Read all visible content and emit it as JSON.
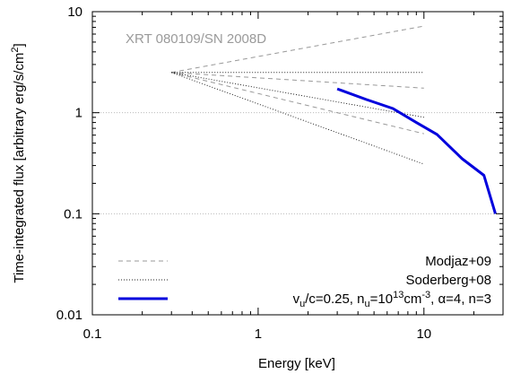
{
  "chart_data": {
    "type": "line",
    "title": "",
    "annotation": "XRT 080109/SN 2008D",
    "xlabel": "Energy [keV]",
    "ylabel_parts": {
      "main": "Time-integrated flux [arbitrary erg/s/cm",
      "sup": "2",
      "close": "]"
    },
    "x_scale": "log",
    "y_scale": "log",
    "xlim": [
      0.1,
      30
    ],
    "ylim": [
      0.01,
      10
    ],
    "x_ticks": [
      0.1,
      1,
      10
    ],
    "x_tick_labels": [
      "0.1",
      "1",
      "10"
    ],
    "y_ticks": [
      0.01,
      0.1,
      1,
      10
    ],
    "y_tick_labels": [
      "0.01",
      "0.1",
      "1",
      "10"
    ],
    "grid": "horizontal dotted at decades",
    "legend_position": "bottom-right",
    "legend": [
      {
        "key": "modjaz",
        "text": "Modjaz+09",
        "style": "dashed",
        "color": "#999999"
      },
      {
        "key": "soderberg",
        "text": "Soderberg+08",
        "style": "dotted",
        "color": "#222222"
      },
      {
        "key": "model",
        "parts": [
          {
            "t": "v",
            "s": "n"
          },
          {
            "t": "u",
            "s": "sub"
          },
          {
            "t": "/c=0.25, n",
            "s": "n"
          },
          {
            "t": "u",
            "s": "sub"
          },
          {
            "t": "=10",
            "s": "n"
          },
          {
            "t": "13",
            "s": "sup"
          },
          {
            "t": "cm",
            "s": "n"
          },
          {
            "t": "-3",
            "s": "sup"
          },
          {
            "t": ", α=4, n=3",
            "s": "n"
          }
        ],
        "style": "solid",
        "color": "#0000dd"
      }
    ],
    "series": [
      {
        "key": "modjaz",
        "style": "dashed",
        "color": "#999999",
        "x": [
          0.3,
          10
        ],
        "y": [
          2.5,
          7.2
        ]
      },
      {
        "key": "modjaz",
        "style": "dashed",
        "color": "#999999",
        "x": [
          0.3,
          10
        ],
        "y": [
          2.5,
          1.75
        ]
      },
      {
        "key": "modjaz",
        "style": "dashed",
        "color": "#999999",
        "x": [
          0.3,
          10
        ],
        "y": [
          2.5,
          0.62
        ]
      },
      {
        "key": "soderberg",
        "style": "dotted",
        "color": "#222222",
        "x": [
          0.3,
          10
        ],
        "y": [
          2.5,
          2.5
        ]
      },
      {
        "key": "soderberg",
        "style": "dotted",
        "color": "#222222",
        "x": [
          0.3,
          10
        ],
        "y": [
          2.5,
          0.9
        ]
      },
      {
        "key": "soderberg",
        "style": "dotted",
        "color": "#222222",
        "x": [
          0.3,
          10
        ],
        "y": [
          2.5,
          0.31
        ]
      },
      {
        "key": "model",
        "style": "solid",
        "color": "#0000dd",
        "x": [
          3,
          4.5,
          6.5,
          9,
          12,
          17,
          23,
          27
        ],
        "y": [
          1.72,
          1.35,
          1.1,
          0.8,
          0.61,
          0.35,
          0.24,
          0.1
        ]
      }
    ]
  }
}
